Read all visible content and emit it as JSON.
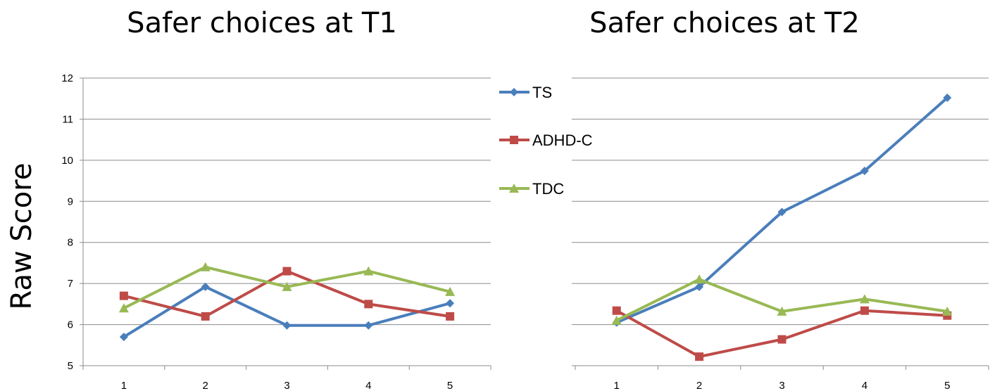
{
  "y_axis_label": "Raw Score",
  "chart_data": [
    {
      "type": "line",
      "title": "Safer choices at T1",
      "categories": [
        "1",
        "2",
        "3",
        "4",
        "5"
      ],
      "ylim": [
        5,
        12
      ],
      "yticks": [
        "5",
        "6",
        "7",
        "8",
        "9",
        "10",
        "11",
        "12"
      ],
      "grid": true,
      "series": [
        {
          "name": "TS",
          "color": "#4a7ebb",
          "marker": "diamond",
          "values": [
            5.7,
            6.92,
            5.98,
            5.98,
            6.52
          ]
        },
        {
          "name": "ADHD-C",
          "color": "#be4b48",
          "marker": "square",
          "values": [
            6.7,
            6.2,
            7.3,
            6.5,
            6.2
          ]
        },
        {
          "name": "TDC",
          "color": "#98b954",
          "marker": "triangle",
          "values": [
            6.4,
            7.4,
            6.92,
            7.3,
            6.8
          ]
        }
      ]
    },
    {
      "type": "line",
      "title": "Safer choices at T2",
      "categories": [
        "1",
        "2",
        "3",
        "4",
        "5"
      ],
      "ylim": [
        5,
        12
      ],
      "yticks": [],
      "grid": true,
      "series": [
        {
          "name": "TS",
          "color": "#4a7ebb",
          "marker": "diamond",
          "values": [
            6.05,
            6.92,
            8.74,
            9.74,
            11.52
          ]
        },
        {
          "name": "ADHD-C",
          "color": "#be4b48",
          "marker": "square",
          "values": [
            6.34,
            5.22,
            5.64,
            6.34,
            6.22
          ]
        },
        {
          "name": "TDC",
          "color": "#98b954",
          "marker": "triangle",
          "values": [
            6.1,
            7.1,
            6.32,
            6.62,
            6.32
          ]
        }
      ]
    }
  ],
  "legend": {
    "placement": "between-charts",
    "entries": [
      {
        "label": "TS",
        "color": "#4a7ebb",
        "marker": "diamond"
      },
      {
        "label": "ADHD-C",
        "color": "#be4b48",
        "marker": "square"
      },
      {
        "label": "TDC",
        "color": "#98b954",
        "marker": "triangle"
      }
    ]
  }
}
